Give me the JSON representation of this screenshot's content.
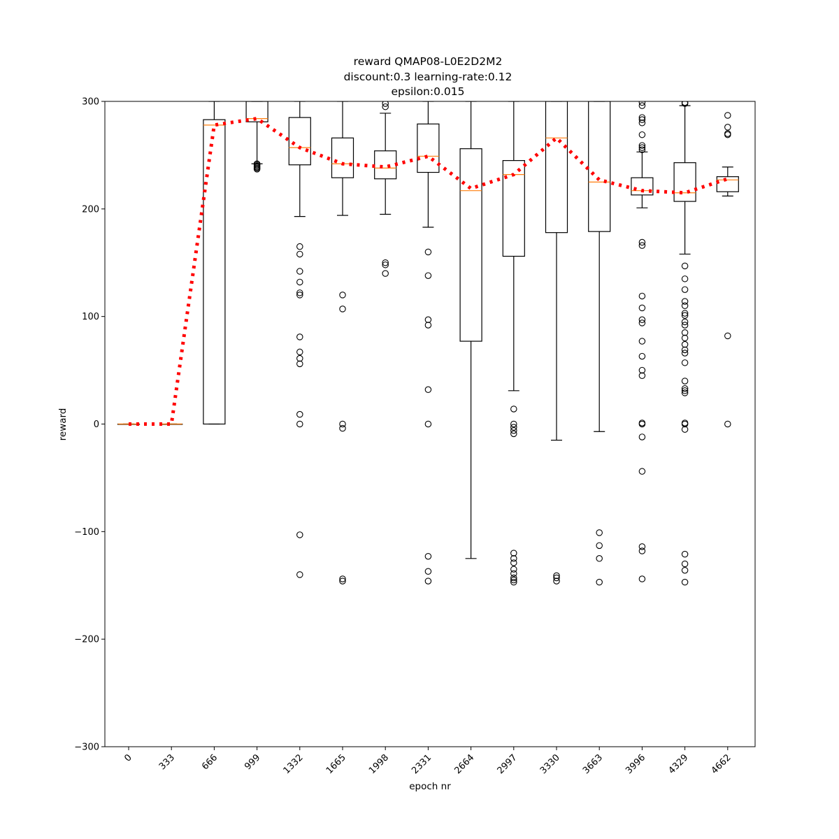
{
  "chart_data": {
    "type": "box",
    "title_lines": [
      "reward QMAP08-L0E2D2M2",
      "discount:0.3 learning-rate:0.12",
      "epsilon:0.015"
    ],
    "xlabel": "epoch nr",
    "ylabel": "reward",
    "ylim": [
      -300,
      300
    ],
    "yticks": [
      -300,
      -200,
      -100,
      0,
      100,
      200,
      300
    ],
    "categories": [
      "0",
      "333",
      "666",
      "999",
      "1332",
      "1665",
      "1998",
      "2331",
      "2664",
      "2997",
      "3330",
      "3663",
      "3996",
      "4329",
      "4662"
    ],
    "boxes": [
      {
        "q1": 0,
        "median": 0,
        "q3": 0,
        "whisker_low": 0,
        "whisker_high": 0,
        "outliers": []
      },
      {
        "q1": 0,
        "median": 0,
        "q3": 0,
        "whisker_low": 0,
        "whisker_high": 0,
        "outliers": []
      },
      {
        "q1": 0,
        "median": 278,
        "q3": 283,
        "whisker_low": 0,
        "whisker_high": 300,
        "outliers": []
      },
      {
        "q1": 281,
        "median": 284,
        "q3": 300,
        "whisker_low": 242,
        "whisker_high": 300,
        "outliers": [
          242,
          241,
          240,
          239,
          238,
          237
        ]
      },
      {
        "q1": 241,
        "median": 257,
        "q3": 285,
        "whisker_low": 193,
        "whisker_high": 300,
        "outliers": [
          165,
          158,
          142,
          132,
          122,
          120,
          81,
          67,
          61,
          56,
          9,
          0,
          -103,
          -140
        ]
      },
      {
        "q1": 229,
        "median": 242,
        "q3": 266,
        "whisker_low": 194,
        "whisker_high": 300,
        "outliers": [
          120,
          107,
          0,
          -4,
          -144,
          -146
        ]
      },
      {
        "q1": 228,
        "median": 238,
        "q3": 254,
        "whisker_low": 195,
        "whisker_high": 289,
        "outliers": [
          298,
          295,
          150,
          148,
          140
        ]
      },
      {
        "q1": 234,
        "median": 249,
        "q3": 279,
        "whisker_low": 183,
        "whisker_high": 300,
        "outliers": [
          160,
          138,
          97,
          92,
          32,
          0,
          -123,
          -137,
          -146
        ]
      },
      {
        "q1": 77,
        "median": 217,
        "q3": 256,
        "whisker_low": -125,
        "whisker_high": 300,
        "outliers": []
      },
      {
        "q1": 156,
        "median": 232,
        "q3": 245,
        "whisker_low": 31,
        "whisker_high": 300,
        "outliers": [
          14,
          0,
          -3,
          -6,
          -9,
          -120,
          -125,
          -129,
          -135,
          -139,
          -143,
          -145,
          -147
        ]
      },
      {
        "q1": 178,
        "median": 266,
        "q3": 300,
        "whisker_low": -15,
        "whisker_high": 300,
        "outliers": [
          -141,
          -143,
          -146
        ]
      },
      {
        "q1": 179,
        "median": 225,
        "q3": 300,
        "whisker_low": -7,
        "whisker_high": 300,
        "outliers": [
          -101,
          -113,
          -125,
          -147
        ]
      },
      {
        "q1": 213,
        "median": 217,
        "q3": 229,
        "whisker_low": 201,
        "whisker_high": 253,
        "outliers": [
          299,
          296,
          285,
          283,
          280,
          269,
          259,
          257,
          255,
          169,
          166,
          119,
          108,
          97,
          94,
          77,
          63,
          50,
          45,
          1,
          0,
          -12,
          -44,
          -114,
          -118,
          -144
        ]
      },
      {
        "q1": 207,
        "median": 215,
        "q3": 243,
        "whisker_low": 158,
        "whisker_high": 296,
        "outliers": [
          299,
          298,
          147,
          135,
          125,
          114,
          110,
          103,
          101,
          95,
          92,
          85,
          80,
          74,
          69,
          66,
          57,
          40,
          33,
          31,
          29,
          1,
          0,
          -5,
          -121,
          -130,
          -136,
          -147
        ]
      },
      {
        "q1": 216,
        "median": 227,
        "q3": 230,
        "whisker_low": 212,
        "whisker_high": 239,
        "outliers": [
          287,
          276,
          270,
          269,
          82,
          0
        ]
      }
    ],
    "mean_line": {
      "style": "dotted",
      "color": "#ff0000",
      "values": [
        0,
        0,
        278,
        284,
        257,
        242,
        239,
        249,
        219,
        232,
        266,
        227,
        217,
        215,
        228
      ]
    },
    "colors": {
      "box": "#000000",
      "median": "#ff7f0e",
      "mean": "#ff0000"
    }
  }
}
